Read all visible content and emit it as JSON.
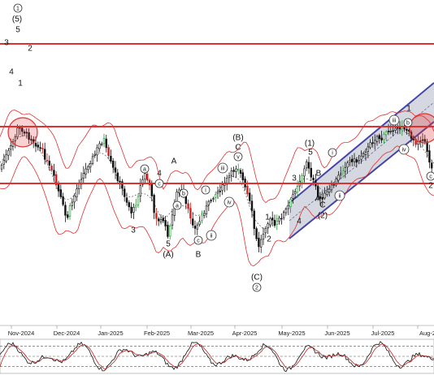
{
  "chart_data": {
    "type": "candlestick",
    "title": "",
    "months": [
      "Nov-2024",
      "Dec-2024",
      "Jan-2025",
      "Feb-2025",
      "Mar-2025",
      "Apr-2025",
      "May-2025",
      "Jun-2025",
      "Jul-2025",
      "Aug-2"
    ],
    "horizontal_levels": [
      {
        "name": "upper-resistance",
        "color": "#e03030"
      },
      {
        "name": "middle-resistance",
        "color": "#e03030"
      },
      {
        "name": "lower-support",
        "color": "#e03030"
      }
    ],
    "channel_color": "#4444aa",
    "channel_fill": "#b4b8c8",
    "bollinger_color": "#e03030",
    "bollinger_mid_color": "#555555",
    "candle_up_color": "#1a9a2a",
    "candle_down_color": "#d02020",
    "candle_neutral_color": "#111111",
    "highlight_circle_color": "#e03030",
    "oscillator": {
      "type": "stochastic",
      "levels": [
        80,
        50,
        20
      ],
      "line_colors": [
        "#111111",
        "#c02020"
      ]
    },
    "wave_labels": [
      {
        "text": "1",
        "circled": true
      },
      {
        "text": "(5)"
      },
      {
        "text": "5"
      },
      {
        "text": "3"
      },
      {
        "text": "2"
      },
      {
        "text": "4"
      },
      {
        "text": "1"
      },
      {
        "text": "a",
        "circled": true
      },
      {
        "text": "4"
      },
      {
        "text": "c",
        "circled": true
      },
      {
        "text": "A"
      },
      {
        "text": "b",
        "circled": true
      },
      {
        "text": "3"
      },
      {
        "text": "a",
        "circled": true
      },
      {
        "text": "5"
      },
      {
        "text": "(A)"
      },
      {
        "text": "c",
        "circled": true
      },
      {
        "text": "B"
      },
      {
        "text": "i",
        "circled": true
      },
      {
        "text": "ii",
        "circled": true
      },
      {
        "text": "iii",
        "circled": true
      },
      {
        "text": "iv",
        "circled": true
      },
      {
        "text": "(B)"
      },
      {
        "text": "C"
      },
      {
        "text": "v",
        "circled": true
      },
      {
        "text": "1"
      },
      {
        "text": "2"
      },
      {
        "text": "(C)"
      },
      {
        "text": "2",
        "circled": true
      },
      {
        "text": "(1)"
      },
      {
        "text": "5"
      },
      {
        "text": "3"
      },
      {
        "text": "4"
      },
      {
        "text": "B"
      },
      {
        "text": "A"
      },
      {
        "text": "C"
      },
      {
        "text": "(2)"
      },
      {
        "text": "i",
        "circled": true
      },
      {
        "text": "ii",
        "circled": true
      },
      {
        "text": "iii",
        "circled": true
      },
      {
        "text": "iv",
        "circled": true
      },
      {
        "text": "1"
      },
      {
        "text": "b",
        "circled": true
      },
      {
        "text": "c",
        "circled": true
      },
      {
        "text": "2"
      }
    ]
  }
}
